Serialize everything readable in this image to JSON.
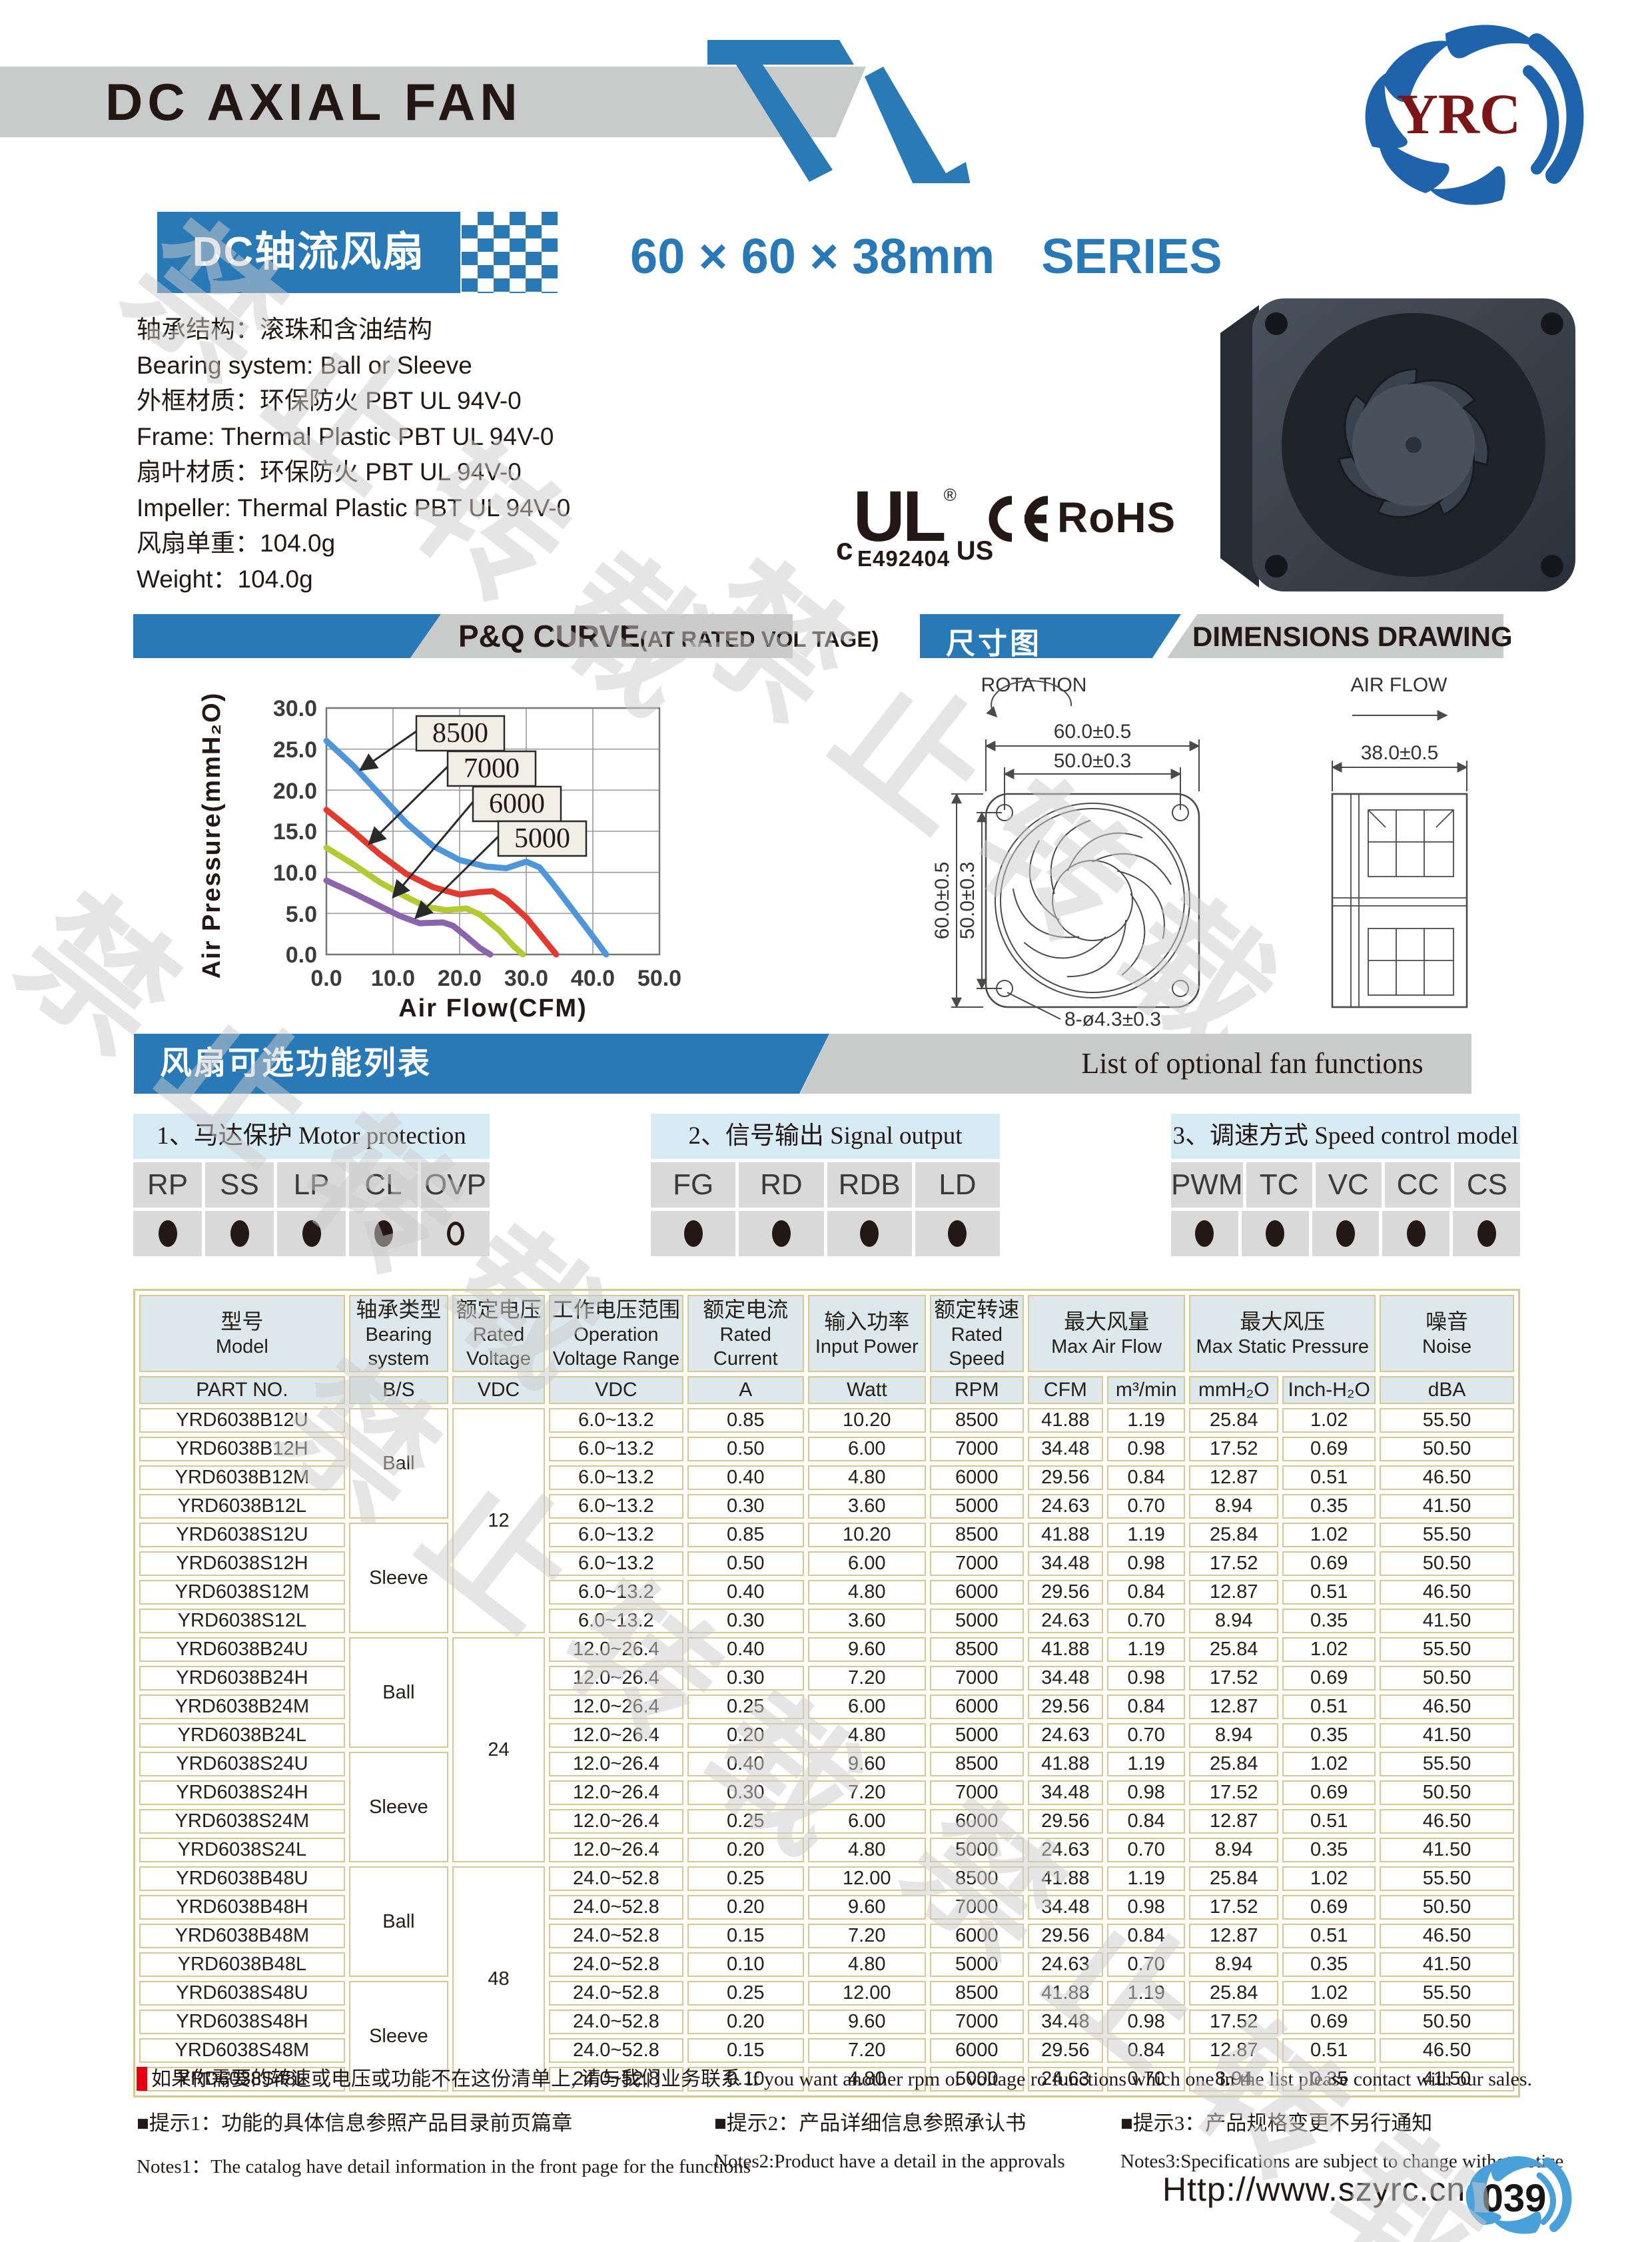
{
  "header": {
    "title": "DC AXIAL FAN",
    "logo_text": "YRC"
  },
  "watermark": "禁止转载",
  "product": {
    "series_cn": "DC轴流风扇",
    "series_size": "60 × 60 × 38mm",
    "series_suffix": "SERIES",
    "specs": [
      "轴承结构：滚珠和含油结构",
      "Bearing system:  Ball or Sleeve",
      "外框材质：环保防火 PBT UL 94V-0",
      "Frame: Thermal Plastic PBT UL 94V-0",
      "扇叶材质：环保防火 PBT UL 94V-0",
      "Impeller:  Thermal Plastic PBT UL 94V-0",
      "风扇单重：104.0g",
      "Weight：104.0g"
    ],
    "certs": {
      "ul_c": "c",
      "ul": "UL",
      "ul_reg": "®",
      "ul_us": "US",
      "ul_code": "E492404",
      "ce": "CE",
      "rohs": "RoHS"
    }
  },
  "pq": {
    "title": "P&Q CURVE",
    "subtitle": "(AT RATED VOL TAGE)"
  },
  "dim": {
    "title_cn": "尺寸图",
    "title_en": "DIMENSIONS  DRAWING",
    "rotation": "ROTA TION",
    "airflow": "AIR FLOW",
    "w_outer": "60.0±0.5",
    "w_pitch": "50.0±0.3",
    "h_outer": "60.0±0.5",
    "h_pitch": "50.0±0.3",
    "depth": "38.0±0.5",
    "holes": "8-ø4.3±0.3"
  },
  "chart_data": {
    "type": "line",
    "title": "P&Q CURVE (AT RATED VOLTAGE)",
    "xlabel": "Air Flow(CFM)",
    "ylabel": "Air Pressure(mmH₂O)",
    "xlim": [
      0,
      50
    ],
    "ylim": [
      0,
      30
    ],
    "grid": true,
    "legend_position": "inline-label-boxes",
    "x_ticks": [
      "0.0",
      "10.0",
      "20.0",
      "30.0",
      "40.0",
      "50.0"
    ],
    "y_ticks": [
      "30.0",
      "25.0",
      "20.0",
      "15.0",
      "10.0",
      "5.0",
      "0.0"
    ],
    "series": [
      {
        "name": "8500",
        "color": "#4e95d9",
        "points": [
          [
            0,
            26
          ],
          [
            4,
            23
          ],
          [
            8,
            19.5
          ],
          [
            12,
            16
          ],
          [
            16,
            13.2
          ],
          [
            20,
            11.5
          ],
          [
            24,
            10.7
          ],
          [
            27,
            10.5
          ],
          [
            30,
            11.3
          ],
          [
            32,
            10.6
          ],
          [
            34,
            8.6
          ],
          [
            37,
            5.4
          ],
          [
            40,
            2.2
          ],
          [
            42,
            0
          ]
        ]
      },
      {
        "name": "7000",
        "color": "#e23a30",
        "points": [
          [
            0,
            17.6
          ],
          [
            4,
            15
          ],
          [
            8,
            12.2
          ],
          [
            12,
            9.8
          ],
          [
            16,
            8.2
          ],
          [
            20,
            7.3
          ],
          [
            23,
            7.6
          ],
          [
            25,
            7.7
          ],
          [
            27,
            6.7
          ],
          [
            30,
            4.5
          ],
          [
            32,
            2.5
          ],
          [
            34.5,
            0
          ]
        ]
      },
      {
        "name": "6000",
        "color": "#b5c932",
        "points": [
          [
            0,
            13
          ],
          [
            4,
            11
          ],
          [
            8,
            8.8
          ],
          [
            12,
            7
          ],
          [
            15,
            5.8
          ],
          [
            18,
            5.4
          ],
          [
            21,
            5.6
          ],
          [
            23,
            4.9
          ],
          [
            26,
            2.9
          ],
          [
            28,
            1.1
          ],
          [
            29.5,
            0
          ]
        ]
      },
      {
        "name": "5000",
        "color": "#8a64ad",
        "points": [
          [
            0,
            9
          ],
          [
            4,
            7.5
          ],
          [
            8,
            5.9
          ],
          [
            11,
            4.7
          ],
          [
            14,
            3.8
          ],
          [
            17.5,
            3.9
          ],
          [
            19,
            3.5
          ],
          [
            21,
            2.2
          ],
          [
            23,
            0.8
          ],
          [
            24.6,
            0
          ]
        ]
      }
    ]
  },
  "functions": {
    "banner_cn": "风扇可选功能列表",
    "banner_en": "List of optional fan functions",
    "groups": [
      {
        "title": "1、马达保护 Motor protection",
        "items": [
          {
            "label": "RP",
            "filled": true
          },
          {
            "label": "SS",
            "filled": true
          },
          {
            "label": "LP",
            "filled": true
          },
          {
            "label": "CL",
            "filled": true
          },
          {
            "label": "OVP",
            "filled": false
          }
        ]
      },
      {
        "title": "2、信号输出 Signal output",
        "items": [
          {
            "label": "FG",
            "filled": true
          },
          {
            "label": "RD",
            "filled": true
          },
          {
            "label": "RDB",
            "filled": true
          },
          {
            "label": "LD",
            "filled": true
          }
        ]
      },
      {
        "title": "3、调速方式 Speed control model",
        "items": [
          {
            "label": "PWM",
            "filled": true
          },
          {
            "label": "TC",
            "filled": true
          },
          {
            "label": "VC",
            "filled": true
          },
          {
            "label": "CC",
            "filled": true
          },
          {
            "label": "CS",
            "filled": true
          }
        ]
      }
    ]
  },
  "table": {
    "header1": [
      {
        "cn": "型号",
        "en": "Model"
      },
      {
        "cn": "轴承类型",
        "en": "Bearing system"
      },
      {
        "cn": "额定电压",
        "en": "Rated Voltage"
      },
      {
        "cn": "工作电压范围",
        "en": "Operation Voltage Range"
      },
      {
        "cn": "额定电流",
        "en": "Rated Current"
      },
      {
        "cn": "输入功率",
        "en": "Input Power"
      },
      {
        "cn": "额定转速",
        "en": "Rated Speed"
      },
      {
        "cn": "最大风量",
        "en": "Max Air Flow"
      },
      {
        "cn": "最大风压",
        "en": "Max Static Pressure"
      },
      {
        "cn": "噪音",
        "en": "Noise"
      }
    ],
    "header2": [
      "PART NO.",
      "B/S",
      "VDC",
      "VDC",
      "A",
      "Watt",
      "RPM",
      "CFM",
      "m³/min",
      "mmH₂O",
      "Inch-H₂O",
      "dBA"
    ],
    "groups": [
      {
        "voltage": "12",
        "subgroups": [
          {
            "bearing": "Ball",
            "rows": [
              [
                "YRD6038B12U",
                "6.0~13.2",
                "0.85",
                "10.20",
                "8500",
                "41.88",
                "1.19",
                "25.84",
                "1.02",
                "55.50"
              ],
              [
                "YRD6038B12H",
                "6.0~13.2",
                "0.50",
                "6.00",
                "7000",
                "34.48",
                "0.98",
                "17.52",
                "0.69",
                "50.50"
              ],
              [
                "YRD6038B12M",
                "6.0~13.2",
                "0.40",
                "4.80",
                "6000",
                "29.56",
                "0.84",
                "12.87",
                "0.51",
                "46.50"
              ],
              [
                "YRD6038B12L",
                "6.0~13.2",
                "0.30",
                "3.60",
                "5000",
                "24.63",
                "0.70",
                "8.94",
                "0.35",
                "41.50"
              ]
            ]
          },
          {
            "bearing": "Sleeve",
            "rows": [
              [
                "YRD6038S12U",
                "6.0~13.2",
                "0.85",
                "10.20",
                "8500",
                "41.88",
                "1.19",
                "25.84",
                "1.02",
                "55.50"
              ],
              [
                "YRD6038S12H",
                "6.0~13.2",
                "0.50",
                "6.00",
                "7000",
                "34.48",
                "0.98",
                "17.52",
                "0.69",
                "50.50"
              ],
              [
                "YRD6038S12M",
                "6.0~13.2",
                "0.40",
                "4.80",
                "6000",
                "29.56",
                "0.84",
                "12.87",
                "0.51",
                "46.50"
              ],
              [
                "YRD6038S12L",
                "6.0~13.2",
                "0.30",
                "3.60",
                "5000",
                "24.63",
                "0.70",
                "8.94",
                "0.35",
                "41.50"
              ]
            ]
          }
        ]
      },
      {
        "voltage": "24",
        "subgroups": [
          {
            "bearing": "Ball",
            "rows": [
              [
                "YRD6038B24U",
                "12.0~26.4",
                "0.40",
                "9.60",
                "8500",
                "41.88",
                "1.19",
                "25.84",
                "1.02",
                "55.50"
              ],
              [
                "YRD6038B24H",
                "12.0~26.4",
                "0.30",
                "7.20",
                "7000",
                "34.48",
                "0.98",
                "17.52",
                "0.69",
                "50.50"
              ],
              [
                "YRD6038B24M",
                "12.0~26.4",
                "0.25",
                "6.00",
                "6000",
                "29.56",
                "0.84",
                "12.87",
                "0.51",
                "46.50"
              ],
              [
                "YRD6038B24L",
                "12.0~26.4",
                "0.20",
                "4.80",
                "5000",
                "24.63",
                "0.70",
                "8.94",
                "0.35",
                "41.50"
              ]
            ]
          },
          {
            "bearing": "Sleeve",
            "rows": [
              [
                "YRD6038S24U",
                "12.0~26.4",
                "0.40",
                "9.60",
                "8500",
                "41.88",
                "1.19",
                "25.84",
                "1.02",
                "55.50"
              ],
              [
                "YRD6038S24H",
                "12.0~26.4",
                "0.30",
                "7.20",
                "7000",
                "34.48",
                "0.98",
                "17.52",
                "0.69",
                "50.50"
              ],
              [
                "YRD6038S24M",
                "12.0~26.4",
                "0.25",
                "6.00",
                "6000",
                "29.56",
                "0.84",
                "12.87",
                "0.51",
                "46.50"
              ],
              [
                "YRD6038S24L",
                "12.0~26.4",
                "0.20",
                "4.80",
                "5000",
                "24.63",
                "0.70",
                "8.94",
                "0.35",
                "41.50"
              ]
            ]
          }
        ]
      },
      {
        "voltage": "48",
        "subgroups": [
          {
            "bearing": "Ball",
            "rows": [
              [
                "YRD6038B48U",
                "24.0~52.8",
                "0.25",
                "12.00",
                "8500",
                "41.88",
                "1.19",
                "25.84",
                "1.02",
                "55.50"
              ],
              [
                "YRD6038B48H",
                "24.0~52.8",
                "0.20",
                "9.60",
                "7000",
                "34.48",
                "0.98",
                "17.52",
                "0.69",
                "50.50"
              ],
              [
                "YRD6038B48M",
                "24.0~52.8",
                "0.15",
                "7.20",
                "6000",
                "29.56",
                "0.84",
                "12.87",
                "0.51",
                "46.50"
              ],
              [
                "YRD6038B48L",
                "24.0~52.8",
                "0.10",
                "4.80",
                "5000",
                "24.63",
                "0.70",
                "8.94",
                "0.35",
                "41.50"
              ]
            ]
          },
          {
            "bearing": "Sleeve",
            "rows": [
              [
                "YRD6038S48U",
                "24.0~52.8",
                "0.25",
                "12.00",
                "8500",
                "41.88",
                "1.19",
                "25.84",
                "1.02",
                "55.50"
              ],
              [
                "YRD6038S48H",
                "24.0~52.8",
                "0.20",
                "9.60",
                "7000",
                "34.48",
                "0.98",
                "17.52",
                "0.69",
                "50.50"
              ],
              [
                "YRD6038S48M",
                "24.0~52.8",
                "0.15",
                "7.20",
                "6000",
                "29.56",
                "0.84",
                "12.87",
                "0.51",
                "46.50"
              ],
              [
                "YRD6038S48L",
                "24.0~52.8",
                "0.10",
                "4.80",
                "5000",
                "24.63",
                "0.70",
                "8.94",
                "0.35",
                "41.50"
              ]
            ]
          }
        ]
      }
    ]
  },
  "footer": {
    "contact": "如果你需要的转速或电压或功能不在这份清单上, 请与我们业务联系 If you want another rpm or voltage ro functions which one in the list please contact with our sales.",
    "notes": [
      {
        "cn": "■提示1：功能的具体信息参照产品目录前页篇章",
        "en": "Notes1：The catalog have detail information in the front page for the functions"
      },
      {
        "cn": "■提示2：产品详细信息参照承认书",
        "en": "Notes2:Product have a detail in the approvals"
      },
      {
        "cn": "■提示3：产品规格变更不另行通知",
        "en": "Notes3:Specifications are subject to change withot notice"
      }
    ],
    "url": "Http://www.szyrc.cn",
    "page_number": "039"
  }
}
